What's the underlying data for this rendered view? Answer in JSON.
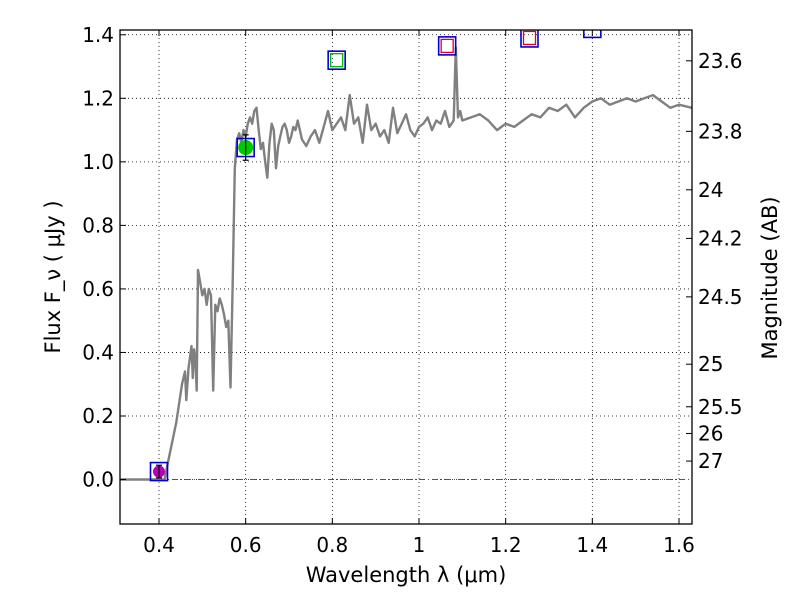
{
  "chart_data": {
    "type": "line",
    "title": "",
    "xlabel": "Wavelength  λ (μm)",
    "ylabel": "Flux  F_ν  ( μJy )",
    "y2label": "Magnitude (AB)",
    "xlim": [
      0.31,
      1.63
    ],
    "ylim": [
      -0.14,
      1.415
    ],
    "grid": true,
    "x_ticks": [
      0.4,
      0.6,
      0.8,
      1.0,
      1.2,
      1.4,
      1.6
    ],
    "x_tick_labels": [
      "0.4",
      "0.6",
      "0.8",
      "1",
      "1.2",
      "1.4",
      "1.6"
    ],
    "y_ticks": [
      0.0,
      0.2,
      0.4,
      0.6,
      0.8,
      1.0,
      1.2,
      1.4
    ],
    "y_tick_labels": [
      "0.0",
      "0.2",
      "0.4",
      "0.6",
      "0.8",
      "1.0",
      "1.2",
      "1.4"
    ],
    "y2_ticks": [
      {
        "label": "23.6",
        "flux": 1.318
      },
      {
        "label": "23.8",
        "flux": 1.096
      },
      {
        "label": "24",
        "flux": 0.912
      },
      {
        "label": "24.2",
        "flux": 0.759
      },
      {
        "label": "24.5",
        "flux": 0.575
      },
      {
        "label": "25",
        "flux": 0.363
      },
      {
        "label": "25.5",
        "flux": 0.229
      },
      {
        "label": "26",
        "flux": 0.145
      },
      {
        "label": "27",
        "flux": 0.058
      }
    ],
    "colors": {
      "spectrum": "#808080",
      "box_outer": "#0000cc",
      "box_red": "#e0002a",
      "box_green": "#00b400",
      "point_magenta": "#b400b4",
      "point_green": "#00c800",
      "zero_line": "#555555"
    },
    "spectrum": {
      "x": [
        0.31,
        0.4,
        0.413,
        0.42,
        0.44,
        0.453,
        0.46,
        0.463,
        0.468,
        0.471,
        0.475,
        0.478,
        0.481,
        0.484,
        0.487,
        0.49,
        0.495,
        0.5,
        0.505,
        0.51,
        0.515,
        0.52,
        0.525,
        0.53,
        0.535,
        0.54,
        0.545,
        0.55,
        0.555,
        0.56,
        0.565,
        0.57,
        0.575,
        0.58,
        0.585,
        0.59,
        0.595,
        0.6,
        0.605,
        0.61,
        0.615,
        0.62,
        0.625,
        0.63,
        0.635,
        0.64,
        0.645,
        0.65,
        0.655,
        0.66,
        0.665,
        0.67,
        0.675,
        0.68,
        0.685,
        0.69,
        0.695,
        0.7,
        0.705,
        0.71,
        0.715,
        0.72,
        0.73,
        0.74,
        0.75,
        0.76,
        0.77,
        0.78,
        0.79,
        0.8,
        0.81,
        0.82,
        0.83,
        0.84,
        0.85,
        0.86,
        0.87,
        0.88,
        0.89,
        0.9,
        0.91,
        0.92,
        0.93,
        0.94,
        0.95,
        0.96,
        0.97,
        0.98,
        0.99,
        1.0,
        1.01,
        1.02,
        1.03,
        1.04,
        1.05,
        1.06,
        1.07,
        1.08,
        1.085,
        1.09,
        1.095,
        1.1,
        1.12,
        1.14,
        1.16,
        1.18,
        1.2,
        1.22,
        1.24,
        1.26,
        1.28,
        1.3,
        1.32,
        1.34,
        1.36,
        1.38,
        1.4,
        1.42,
        1.44,
        1.46,
        1.48,
        1.5,
        1.52,
        1.54,
        1.56,
        1.58,
        1.6,
        1.63
      ],
      "y": [
        0.0,
        0.0,
        0.0,
        0.05,
        0.18,
        0.3,
        0.34,
        0.25,
        0.35,
        0.38,
        0.42,
        0.32,
        0.41,
        0.38,
        0.28,
        0.66,
        0.62,
        0.58,
        0.6,
        0.55,
        0.6,
        0.58,
        0.28,
        0.55,
        0.53,
        0.57,
        0.55,
        0.52,
        0.48,
        0.5,
        0.29,
        0.62,
        0.98,
        1.07,
        1.09,
        1.06,
        1.1,
        1.08,
        1.12,
        1.14,
        1.12,
        1.16,
        1.17,
        1.1,
        1.04,
        1.06,
        1.0,
        0.95,
        1.06,
        1.12,
        1.1,
        0.98,
        1.05,
        1.08,
        1.11,
        1.12,
        1.1,
        1.06,
        1.08,
        1.11,
        1.1,
        1.13,
        1.07,
        1.05,
        1.08,
        1.1,
        1.06,
        1.11,
        1.16,
        1.1,
        1.12,
        1.14,
        1.1,
        1.21,
        1.12,
        1.14,
        1.06,
        1.18,
        1.1,
        1.12,
        1.08,
        1.1,
        1.06,
        1.17,
        1.09,
        1.12,
        1.15,
        1.1,
        1.08,
        1.11,
        1.12,
        1.14,
        1.1,
        1.13,
        1.12,
        1.16,
        1.11,
        1.13,
        1.36,
        1.14,
        1.16,
        1.13,
        1.14,
        1.15,
        1.13,
        1.1,
        1.12,
        1.11,
        1.13,
        1.15,
        1.14,
        1.17,
        1.16,
        1.18,
        1.14,
        1.17,
        1.19,
        1.2,
        1.18,
        1.19,
        1.2,
        1.19,
        1.2,
        1.21,
        1.19,
        1.17,
        1.18,
        1.17
      ]
    },
    "photometry": [
      {
        "x": 0.4,
        "y": 0.025,
        "box": "blue",
        "fill": "magenta",
        "err": 0.02
      },
      {
        "x": 0.6,
        "y": 1.045,
        "box": "blue",
        "fill": "green",
        "err": 0.04
      },
      {
        "x": 0.81,
        "y": 1.32,
        "box": "blue-green"
      },
      {
        "x": 1.065,
        "y": 1.365,
        "box": "blue-red"
      },
      {
        "x": 1.255,
        "y": 1.39,
        "box": "blue-red"
      },
      {
        "x": 1.4,
        "y": 1.42,
        "box": "blue"
      }
    ]
  }
}
